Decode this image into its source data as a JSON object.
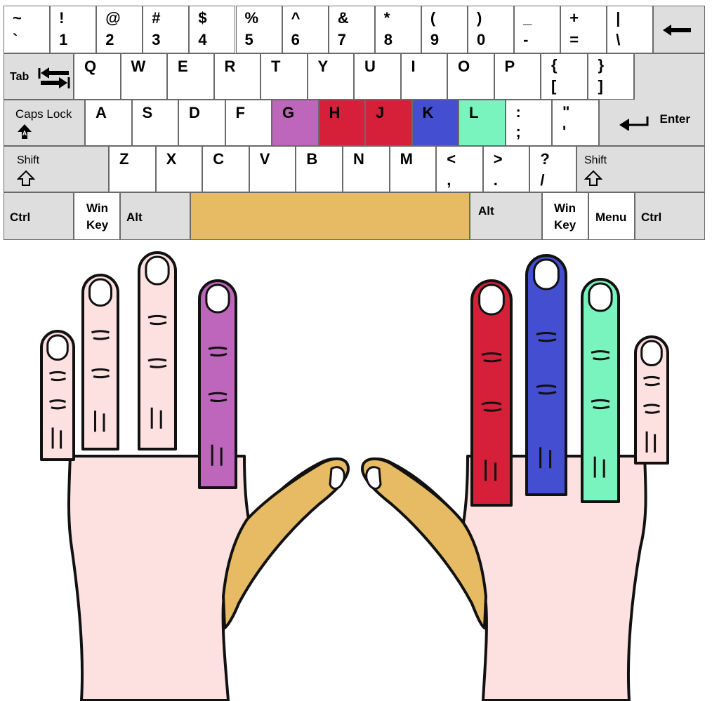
{
  "colors": {
    "key_bg": "#ffffff",
    "special_key_bg": "#dedede",
    "key_border": "#6a6a6a",
    "g": "#bd66bb",
    "h": "#d6203a",
    "j": "#d6203a",
    "k": "#434fd0",
    "l": "#7af4be",
    "space": "#e6bb64",
    "skin": "#fde0e0",
    "outline": "#111111"
  },
  "rows": {
    "number": [
      {
        "top": "~",
        "bottom": "`"
      },
      {
        "top": "!",
        "bottom": "1"
      },
      {
        "top": "@",
        "bottom": "2"
      },
      {
        "top": "#",
        "bottom": "3"
      },
      {
        "top": "$",
        "bottom": "4"
      },
      {
        "top": "%",
        "bottom": "5"
      },
      {
        "top": "^",
        "bottom": "6"
      },
      {
        "top": "&",
        "bottom": "7"
      },
      {
        "top": "*",
        "bottom": "8"
      },
      {
        "top": "(",
        "bottom": "9"
      },
      {
        "top": ")",
        "bottom": "0"
      },
      {
        "top": "_",
        "bottom": "-"
      },
      {
        "top": "+",
        "bottom": "="
      },
      {
        "top": "|",
        "bottom": "\\"
      }
    ],
    "qwerty": [
      "Q",
      "W",
      "E",
      "R",
      "T",
      "Y",
      "U",
      "I",
      "O",
      "P"
    ],
    "qwerty_brackets": [
      {
        "top": "{",
        "bottom": "["
      },
      {
        "top": "}",
        "bottom": "]"
      }
    ],
    "home": [
      "A",
      "S",
      "D",
      "F",
      "G",
      "H",
      "J",
      "K",
      "L"
    ],
    "home_punct": [
      {
        "top": ":",
        "bottom": ";"
      },
      {
        "top": "\"",
        "bottom": "'"
      }
    ],
    "bottom_letters": [
      "Z",
      "X",
      "C",
      "V",
      "B",
      "N",
      "M"
    ],
    "bottom_punct": [
      {
        "top": "<",
        "bottom": ","
      },
      {
        "top": ">",
        "bottom": "."
      },
      {
        "top": "?",
        "bottom": "/"
      }
    ]
  },
  "labels": {
    "tab": "Tab",
    "caps_lock": "Caps Lock",
    "enter": "Enter",
    "shift_left": "Shift",
    "shift_right": "Shift",
    "ctrl_left": "Ctrl",
    "win_left_1": "Win",
    "win_left_2": "Key",
    "alt_left": "Alt",
    "alt_right": "Alt",
    "win_right_1": "Win",
    "win_right_2": "Key",
    "menu": "Menu",
    "ctrl_right": "Ctrl"
  },
  "icons": {
    "backspace": "arrow-left-icon",
    "tab": "tab-arrows-icon",
    "caps_lock": "caps-lock-icon",
    "enter": "enter-arrow-icon",
    "shift": "shift-arrow-icon"
  }
}
